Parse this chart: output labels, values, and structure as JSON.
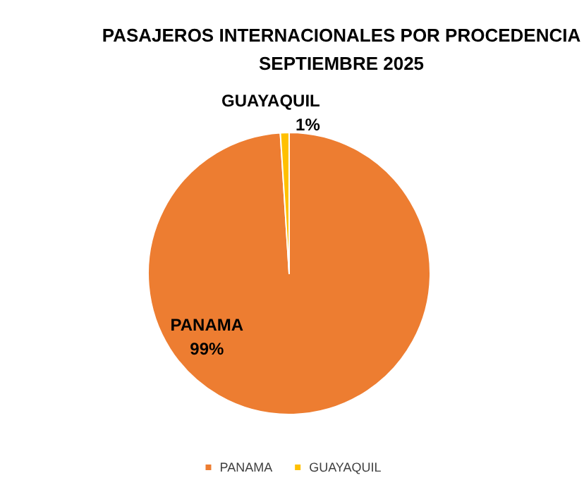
{
  "chart_data": {
    "type": "pie",
    "title": "PASAJEROS INTERNACIONALES POR PROCEDENCIA\nSEPTIEMBRE 2025",
    "categories": [
      "PANAMA",
      "GUAYAQUIL"
    ],
    "values": [
      99,
      1
    ],
    "colors": [
      "#ed7d31",
      "#ffc000"
    ],
    "value_labels": [
      "99%",
      "1%"
    ],
    "legend": "bottom"
  }
}
